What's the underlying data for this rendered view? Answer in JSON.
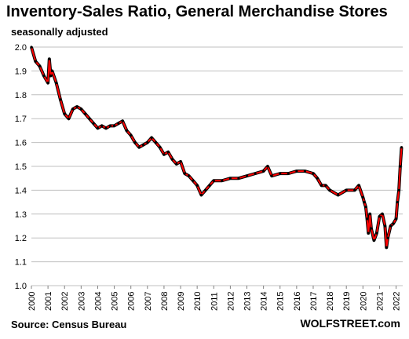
{
  "chart_data": {
    "type": "line",
    "title": "Inventory-Sales Ratio, General Merchandise Stores",
    "subtitle": "seasonally adjusted",
    "source": "Source: Census Bureau",
    "brand": "WOLFSTREET.com",
    "ylim": [
      1.0,
      2.0
    ],
    "yticks": [
      "1.0",
      "1.1",
      "1.2",
      "1.3",
      "1.4",
      "1.5",
      "1.6",
      "1.7",
      "1.8",
      "1.9",
      "2.0"
    ],
    "xlim": [
      2000.0,
      2022.4
    ],
    "xticks": [
      "2000",
      "2001",
      "2002",
      "2003",
      "2004",
      "2005",
      "2006",
      "2007",
      "2008",
      "2009",
      "2010",
      "2011",
      "2012",
      "2013",
      "2014",
      "2015",
      "2016",
      "2017",
      "2018",
      "2019",
      "2020",
      "2021",
      "2022"
    ],
    "grid": true,
    "legend": "none",
    "line_color": "#ff0000",
    "marker_color": "#000000",
    "series": [
      {
        "x": [
          2000.0,
          2000.25,
          2000.5,
          2000.75,
          2001.0,
          2001.08,
          2001.17,
          2001.25,
          2001.5,
          2001.75,
          2002.0,
          2002.25,
          2002.5,
          2002.75,
          2003.0,
          2003.25,
          2003.5,
          2003.75,
          2004.0,
          2004.25,
          2004.5,
          2004.75,
          2005.0,
          2005.25,
          2005.5,
          2005.75,
          2006.0,
          2006.25,
          2006.5,
          2006.75,
          2007.0,
          2007.25,
          2007.5,
          2007.75,
          2008.0,
          2008.25,
          2008.5,
          2008.75,
          2009.0,
          2009.25,
          2009.5,
          2009.75,
          2010.0,
          2010.25,
          2010.5,
          2010.75,
          2011.0,
          2011.5,
          2012.0,
          2012.5,
          2013.0,
          2013.5,
          2014.0,
          2014.25,
          2014.5,
          2015.0,
          2015.5,
          2016.0,
          2016.5,
          2017.0,
          2017.25,
          2017.5,
          2017.75,
          2018.0,
          2018.5,
          2019.0,
          2019.5,
          2019.75,
          2020.0,
          2020.08,
          2020.17,
          2020.25,
          2020.33,
          2020.42,
          2020.5,
          2020.67,
          2020.83,
          2021.0,
          2021.17,
          2021.33,
          2021.42,
          2021.5,
          2021.67,
          2021.83,
          2022.0,
          2022.08,
          2022.17,
          2022.25,
          2022.33
        ],
        "y": [
          2.0,
          1.94,
          1.92,
          1.88,
          1.85,
          1.95,
          1.88,
          1.9,
          1.85,
          1.78,
          1.72,
          1.7,
          1.74,
          1.75,
          1.74,
          1.72,
          1.7,
          1.68,
          1.66,
          1.67,
          1.66,
          1.67,
          1.67,
          1.68,
          1.69,
          1.65,
          1.63,
          1.6,
          1.58,
          1.59,
          1.6,
          1.62,
          1.6,
          1.58,
          1.55,
          1.56,
          1.53,
          1.51,
          1.52,
          1.47,
          1.46,
          1.44,
          1.42,
          1.38,
          1.4,
          1.42,
          1.44,
          1.44,
          1.45,
          1.45,
          1.46,
          1.47,
          1.48,
          1.5,
          1.46,
          1.47,
          1.47,
          1.48,
          1.48,
          1.47,
          1.45,
          1.42,
          1.42,
          1.4,
          1.38,
          1.4,
          1.4,
          1.42,
          1.37,
          1.35,
          1.33,
          1.28,
          1.22,
          1.3,
          1.24,
          1.19,
          1.22,
          1.29,
          1.3,
          1.25,
          1.16,
          1.2,
          1.25,
          1.26,
          1.28,
          1.35,
          1.4,
          1.5,
          1.58
        ]
      }
    ]
  }
}
